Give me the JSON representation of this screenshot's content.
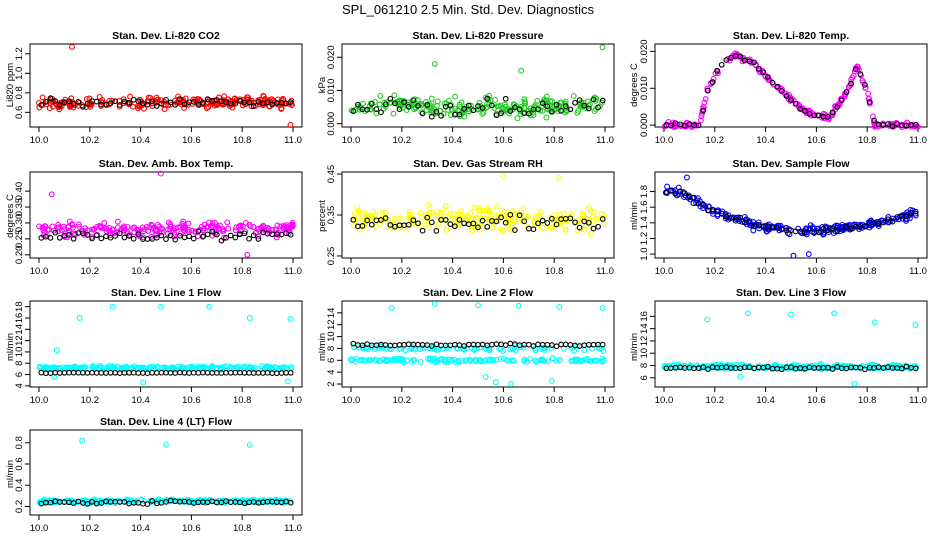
{
  "title": "SPL_061210  2.5 Min. Std. Dev. Diagnostics",
  "colors": {
    "red": "#ff0000",
    "green": "#22cc22",
    "magenta": "#ff00ff",
    "yellow": "#ffff00",
    "blue": "#0000ff",
    "cyan": "#00ffff",
    "overlay": "#000000"
  },
  "chart_data": [
    {
      "type": "scatter",
      "title": "Stan. Dev. Li-820 CO2",
      "ylabel": "Li820 ppm",
      "xlim": [
        10.0,
        11.0
      ],
      "x_ticks": [
        "10.0",
        "10.2",
        "10.4",
        "10.6",
        "10.8",
        "11.0"
      ],
      "ylim": [
        0.45,
        1.3
      ],
      "y_ticks": [
        "0.6",
        "0.8",
        "1.0",
        "1.2"
      ],
      "color": "red",
      "series": [
        {
          "name": "main",
          "baseline": 0.7,
          "spread": 0.08,
          "outliers": [
            [
              10.13,
              1.27
            ],
            [
              10.99,
              0.47
            ]
          ]
        },
        {
          "name": "overlay",
          "baseline": 0.7,
          "spread": 0.06
        }
      ]
    },
    {
      "type": "scatter",
      "title": "Stan. Dev. Li-820 Pressure",
      "ylabel": "kPa",
      "xlim": [
        10.0,
        11.0
      ],
      "x_ticks": [
        "10.0",
        "10.2",
        "10.4",
        "10.6",
        "10.8",
        "11.0"
      ],
      "ylim": [
        -0.001,
        0.024
      ],
      "y_ticks": [
        "0.000",
        "0.010",
        "0.020"
      ],
      "color": "green",
      "series": [
        {
          "name": "main",
          "baseline": 0.005,
          "spread": 0.004,
          "outliers": [
            [
              10.33,
              0.018
            ],
            [
              10.67,
              0.016
            ],
            [
              10.99,
              0.023
            ]
          ]
        },
        {
          "name": "overlay",
          "baseline": 0.005,
          "spread": 0.004
        }
      ]
    },
    {
      "type": "scatter",
      "title": "Stan. Dev. Li-820 Temp.",
      "ylabel": "degrees C",
      "xlim": [
        10.0,
        11.0
      ],
      "x_ticks": [
        "10.0",
        "10.2",
        "10.4",
        "10.6",
        "10.8",
        "11.0"
      ],
      "ylim": [
        -0.0005,
        0.022
      ],
      "y_ticks": [
        "0.000",
        "0.010",
        "0.020"
      ],
      "color": "magenta",
      "profile": [
        [
          10.0,
          0.0
        ],
        [
          10.14,
          0.0
        ],
        [
          10.17,
          0.009
        ],
        [
          10.22,
          0.016
        ],
        [
          10.28,
          0.019
        ],
        [
          10.35,
          0.017
        ],
        [
          10.45,
          0.01
        ],
        [
          10.55,
          0.004
        ],
        [
          10.65,
          0.002
        ],
        [
          10.72,
          0.009
        ],
        [
          10.76,
          0.016
        ],
        [
          10.8,
          0.009
        ],
        [
          10.83,
          0.0
        ],
        [
          11.0,
          0.0
        ]
      ],
      "series": [
        {
          "name": "main",
          "spread": 0.001
        },
        {
          "name": "overlay",
          "spread": 0.0008
        }
      ]
    },
    {
      "type": "scatter",
      "title": "Stan. Dev. Amb. Box Temp.",
      "ylabel": "degrees C",
      "xlim": [
        10.0,
        11.0
      ],
      "x_ticks": [
        "10.0",
        "10.2",
        "10.4",
        "10.6",
        "10.8",
        "11.0"
      ],
      "ylim": [
        0.19,
        0.46
      ],
      "y_ticks": [
        "0.20",
        "0.25",
        "0.30",
        "0.35",
        "0.40"
      ],
      "color": "magenta",
      "series": [
        {
          "name": "main",
          "baseline": 0.28,
          "spread": 0.035,
          "outliers": [
            [
              10.05,
              0.39
            ],
            [
              10.48,
              0.455
            ],
            [
              10.82,
              0.2
            ]
          ]
        },
        {
          "name": "overlay",
          "baseline": 0.26,
          "spread": 0.02
        }
      ]
    },
    {
      "type": "scatter",
      "title": "Stan. Dev. Gas Stream RH",
      "ylabel": "percent",
      "xlim": [
        10.0,
        11.0
      ],
      "x_ticks": [
        "10.0",
        "10.2",
        "10.4",
        "10.6",
        "10.8",
        "11.0"
      ],
      "ylim": [
        0.245,
        0.455
      ],
      "y_ticks": [
        "0.25",
        "0.35",
        "0.45"
      ],
      "color": "yellow",
      "series": [
        {
          "name": "main",
          "baseline": 0.34,
          "spread": 0.04,
          "outliers": [
            [
              10.6,
              0.445
            ],
            [
              10.82,
              0.44
            ]
          ]
        },
        {
          "name": "overlay",
          "baseline": 0.33,
          "spread": 0.03
        }
      ]
    },
    {
      "type": "scatter",
      "title": "Stan. Dev. Sample Flow",
      "ylabel": "ml/min",
      "xlim": [
        10.0,
        11.0
      ],
      "x_ticks": [
        "10.0",
        "10.2",
        "10.4",
        "10.6",
        "10.8",
        "11.0"
      ],
      "ylim": [
        0.95,
        2.05
      ],
      "y_ticks": [
        "1.0",
        "1.2",
        "1.4",
        "1.6",
        "1.8"
      ],
      "color": "blue",
      "profile": [
        [
          10.0,
          1.82
        ],
        [
          10.08,
          1.78
        ],
        [
          10.15,
          1.62
        ],
        [
          10.25,
          1.48
        ],
        [
          10.35,
          1.38
        ],
        [
          10.5,
          1.3
        ],
        [
          10.65,
          1.3
        ],
        [
          10.8,
          1.38
        ],
        [
          10.9,
          1.45
        ],
        [
          11.0,
          1.52
        ]
      ],
      "series": [
        {
          "name": "main",
          "spread": 0.09,
          "outliers": [
            [
              10.09,
              1.98
            ],
            [
              10.51,
              0.98
            ],
            [
              10.57,
              1.0
            ]
          ]
        },
        {
          "name": "overlay",
          "spread": 0.05
        }
      ]
    },
    {
      "type": "scatter",
      "title": "Stan. Dev. Line 1 Flow",
      "ylabel": "ml/min",
      "xlim": [
        10.0,
        11.0
      ],
      "x_ticks": [
        "10.0",
        "10.2",
        "10.4",
        "10.6",
        "10.8",
        "11.0"
      ],
      "ylim": [
        3.8,
        19.0
      ],
      "y_ticks": [
        "4",
        "6",
        "8",
        "10",
        "12",
        "14",
        "16",
        "18"
      ],
      "color": "cyan",
      "series": [
        {
          "name": "main",
          "baseline": 7.2,
          "spread": 0.4,
          "outliers": [
            [
              10.07,
              10.3
            ],
            [
              10.29,
              18.0
            ],
            [
              10.48,
              18.0
            ],
            [
              10.67,
              18.0
            ],
            [
              10.83,
              16.0
            ],
            [
              10.16,
              16.0
            ],
            [
              10.99,
              15.8
            ],
            [
              10.06,
              5.6
            ],
            [
              10.41,
              4.6
            ],
            [
              10.98,
              4.8
            ]
          ]
        },
        {
          "name": "overlay",
          "baseline": 6.3,
          "spread": 0.1
        }
      ]
    },
    {
      "type": "scatter",
      "title": "Stan. Dev. Line 2 Flow",
      "ylabel": "ml/min",
      "xlim": [
        10.0,
        11.0
      ],
      "x_ticks": [
        "10.0",
        "10.2",
        "10.4",
        "10.6",
        "10.8",
        "11.0"
      ],
      "ylim": [
        1.5,
        16.0
      ],
      "y_ticks": [
        "2",
        "4",
        "6",
        "8",
        "10",
        "12",
        "14"
      ],
      "color": "cyan",
      "series": [
        {
          "name": "main",
          "baseline": 6.0,
          "spread": 0.5,
          "band2": 8.0,
          "outliers": [
            [
              10.16,
              14.8
            ],
            [
              10.33,
              15.5
            ],
            [
              10.5,
              15.3
            ],
            [
              10.66,
              15.2
            ],
            [
              10.82,
              15.0
            ],
            [
              10.99,
              14.8
            ],
            [
              10.57,
              2.3
            ],
            [
              10.63,
              2.0
            ],
            [
              10.79,
              2.5
            ],
            [
              10.53,
              3.2
            ]
          ]
        },
        {
          "name": "overlay",
          "baseline": 8.6,
          "spread": 0.3
        }
      ]
    },
    {
      "type": "scatter",
      "title": "Stan. Dev. Line 3 Flow",
      "ylabel": "ml/min",
      "xlim": [
        10.0,
        11.0
      ],
      "x_ticks": [
        "10.0",
        "10.2",
        "10.4",
        "10.6",
        "10.8",
        "11.0"
      ],
      "ylim": [
        4.5,
        18.5
      ],
      "y_ticks": [
        "6",
        "8",
        "10",
        "12",
        "14",
        "16"
      ],
      "color": "cyan",
      "series": [
        {
          "name": "main",
          "baseline": 7.8,
          "spread": 0.5,
          "outliers": [
            [
              10.17,
              15.5
            ],
            [
              10.33,
              16.5
            ],
            [
              10.5,
              16.3
            ],
            [
              10.67,
              16.5
            ],
            [
              10.83,
              15.0
            ],
            [
              10.99,
              14.6
            ],
            [
              10.75,
              5.0
            ],
            [
              10.3,
              6.2
            ]
          ]
        },
        {
          "name": "overlay",
          "baseline": 7.6,
          "spread": 0.3
        }
      ]
    },
    {
      "type": "scatter",
      "title": "Stan. Dev. Line 4 (LT) Flow",
      "ylabel": "ml/min",
      "xlim": [
        10.0,
        11.0
      ],
      "x_ticks": [
        "10.0",
        "10.2",
        "10.4",
        "10.6",
        "10.8",
        "11.0"
      ],
      "ylim": [
        0.12,
        0.92
      ],
      "y_ticks": [
        "0.2",
        "0.4",
        "0.6",
        "0.8"
      ],
      "color": "cyan",
      "series": [
        {
          "name": "main",
          "baseline": 0.25,
          "spread": 0.025,
          "outliers": [
            [
              10.17,
              0.82
            ],
            [
              10.5,
              0.78
            ],
            [
              10.83,
              0.78
            ]
          ]
        },
        {
          "name": "overlay",
          "baseline": 0.24,
          "spread": 0.02
        }
      ]
    }
  ]
}
